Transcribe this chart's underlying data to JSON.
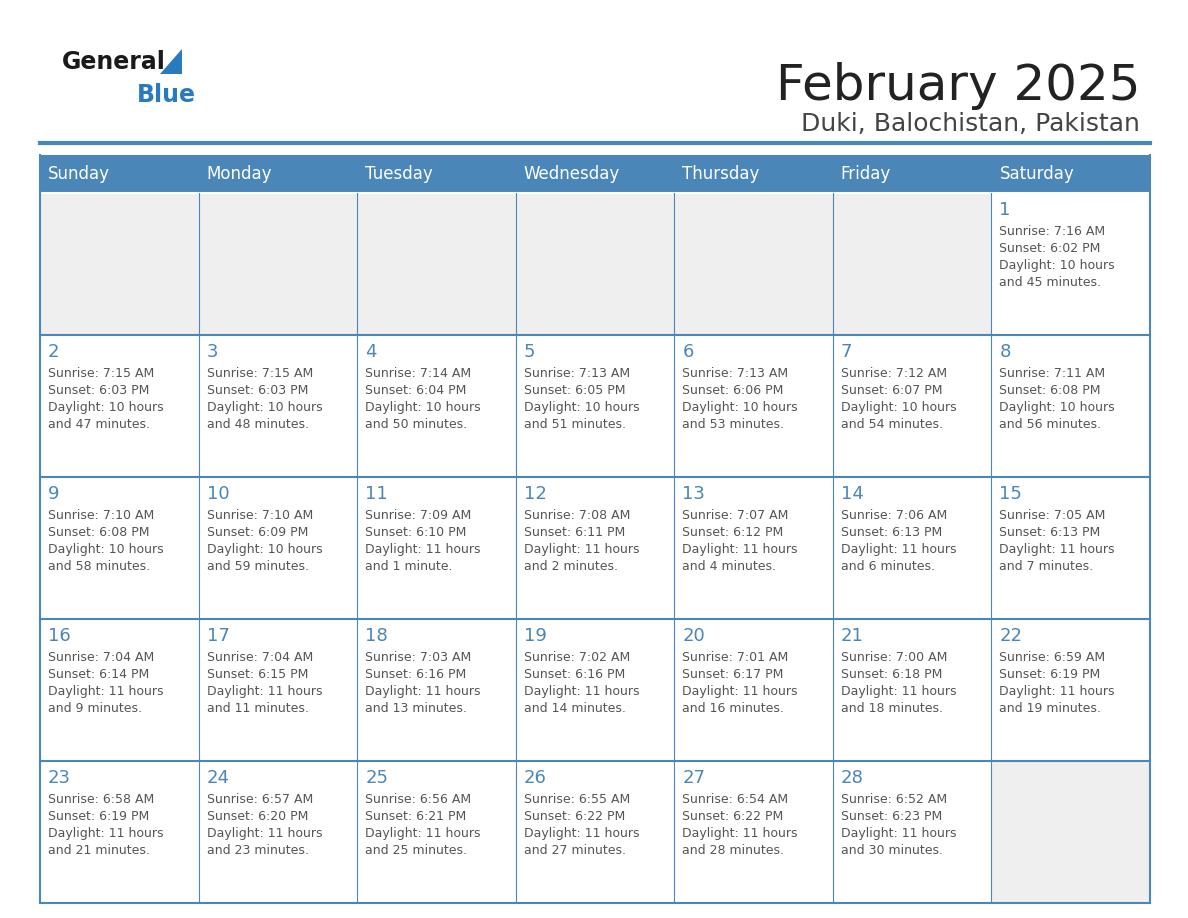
{
  "title": "February 2025",
  "subtitle": "Duki, Balochistan, Pakistan",
  "days_of_week": [
    "Sunday",
    "Monday",
    "Tuesday",
    "Wednesday",
    "Thursday",
    "Friday",
    "Saturday"
  ],
  "header_bg": "#4a86b8",
  "header_text": "#ffffff",
  "cell_bg": "#ffffff",
  "empty_cell_bg": "#efefef",
  "cell_border": "#4a86b8",
  "day_number_color": "#4a86b8",
  "info_text_color": "#555555",
  "title_color": "#222222",
  "subtitle_color": "#444444",
  "logo_general_color": "#1a1a1a",
  "logo_blue_color": "#2a7abf",
  "weeks": [
    [
      {
        "day": null,
        "info": ""
      },
      {
        "day": null,
        "info": ""
      },
      {
        "day": null,
        "info": ""
      },
      {
        "day": null,
        "info": ""
      },
      {
        "day": null,
        "info": ""
      },
      {
        "day": null,
        "info": ""
      },
      {
        "day": 1,
        "info": "Sunrise: 7:16 AM\nSunset: 6:02 PM\nDaylight: 10 hours\nand 45 minutes."
      }
    ],
    [
      {
        "day": 2,
        "info": "Sunrise: 7:15 AM\nSunset: 6:03 PM\nDaylight: 10 hours\nand 47 minutes."
      },
      {
        "day": 3,
        "info": "Sunrise: 7:15 AM\nSunset: 6:03 PM\nDaylight: 10 hours\nand 48 minutes."
      },
      {
        "day": 4,
        "info": "Sunrise: 7:14 AM\nSunset: 6:04 PM\nDaylight: 10 hours\nand 50 minutes."
      },
      {
        "day": 5,
        "info": "Sunrise: 7:13 AM\nSunset: 6:05 PM\nDaylight: 10 hours\nand 51 minutes."
      },
      {
        "day": 6,
        "info": "Sunrise: 7:13 AM\nSunset: 6:06 PM\nDaylight: 10 hours\nand 53 minutes."
      },
      {
        "day": 7,
        "info": "Sunrise: 7:12 AM\nSunset: 6:07 PM\nDaylight: 10 hours\nand 54 minutes."
      },
      {
        "day": 8,
        "info": "Sunrise: 7:11 AM\nSunset: 6:08 PM\nDaylight: 10 hours\nand 56 minutes."
      }
    ],
    [
      {
        "day": 9,
        "info": "Sunrise: 7:10 AM\nSunset: 6:08 PM\nDaylight: 10 hours\nand 58 minutes."
      },
      {
        "day": 10,
        "info": "Sunrise: 7:10 AM\nSunset: 6:09 PM\nDaylight: 10 hours\nand 59 minutes."
      },
      {
        "day": 11,
        "info": "Sunrise: 7:09 AM\nSunset: 6:10 PM\nDaylight: 11 hours\nand 1 minute."
      },
      {
        "day": 12,
        "info": "Sunrise: 7:08 AM\nSunset: 6:11 PM\nDaylight: 11 hours\nand 2 minutes."
      },
      {
        "day": 13,
        "info": "Sunrise: 7:07 AM\nSunset: 6:12 PM\nDaylight: 11 hours\nand 4 minutes."
      },
      {
        "day": 14,
        "info": "Sunrise: 7:06 AM\nSunset: 6:13 PM\nDaylight: 11 hours\nand 6 minutes."
      },
      {
        "day": 15,
        "info": "Sunrise: 7:05 AM\nSunset: 6:13 PM\nDaylight: 11 hours\nand 7 minutes."
      }
    ],
    [
      {
        "day": 16,
        "info": "Sunrise: 7:04 AM\nSunset: 6:14 PM\nDaylight: 11 hours\nand 9 minutes."
      },
      {
        "day": 17,
        "info": "Sunrise: 7:04 AM\nSunset: 6:15 PM\nDaylight: 11 hours\nand 11 minutes."
      },
      {
        "day": 18,
        "info": "Sunrise: 7:03 AM\nSunset: 6:16 PM\nDaylight: 11 hours\nand 13 minutes."
      },
      {
        "day": 19,
        "info": "Sunrise: 7:02 AM\nSunset: 6:16 PM\nDaylight: 11 hours\nand 14 minutes."
      },
      {
        "day": 20,
        "info": "Sunrise: 7:01 AM\nSunset: 6:17 PM\nDaylight: 11 hours\nand 16 minutes."
      },
      {
        "day": 21,
        "info": "Sunrise: 7:00 AM\nSunset: 6:18 PM\nDaylight: 11 hours\nand 18 minutes."
      },
      {
        "day": 22,
        "info": "Sunrise: 6:59 AM\nSunset: 6:19 PM\nDaylight: 11 hours\nand 19 minutes."
      }
    ],
    [
      {
        "day": 23,
        "info": "Sunrise: 6:58 AM\nSunset: 6:19 PM\nDaylight: 11 hours\nand 21 minutes."
      },
      {
        "day": 24,
        "info": "Sunrise: 6:57 AM\nSunset: 6:20 PM\nDaylight: 11 hours\nand 23 minutes."
      },
      {
        "day": 25,
        "info": "Sunrise: 6:56 AM\nSunset: 6:21 PM\nDaylight: 11 hours\nand 25 minutes."
      },
      {
        "day": 26,
        "info": "Sunrise: 6:55 AM\nSunset: 6:22 PM\nDaylight: 11 hours\nand 27 minutes."
      },
      {
        "day": 27,
        "info": "Sunrise: 6:54 AM\nSunset: 6:22 PM\nDaylight: 11 hours\nand 28 minutes."
      },
      {
        "day": 28,
        "info": "Sunrise: 6:52 AM\nSunset: 6:23 PM\nDaylight: 11 hours\nand 30 minutes."
      },
      {
        "day": null,
        "info": ""
      }
    ]
  ]
}
